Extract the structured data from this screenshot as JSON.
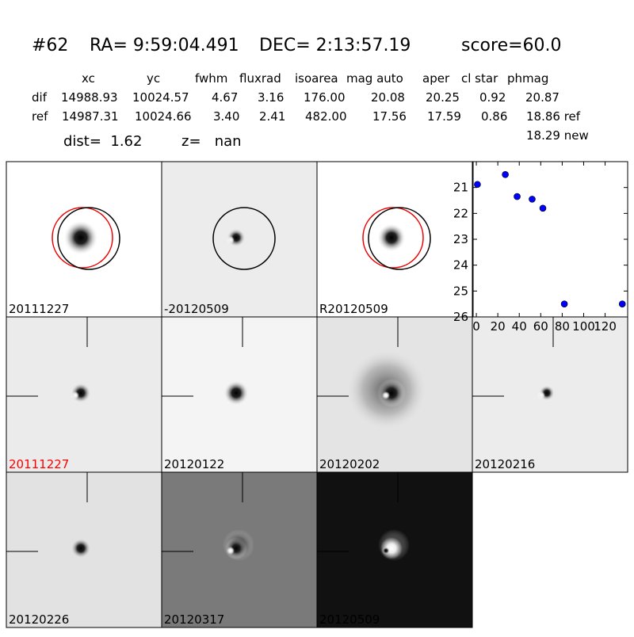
{
  "header": {
    "id": "#62",
    "ra": "RA= 9:59:04.491",
    "dec": "DEC= 2:13:57.19",
    "score": "score=60.0"
  },
  "table": {
    "columns": [
      "xc",
      "yc",
      "fwhm",
      "fluxrad",
      "isoarea",
      "mag auto",
      "aper",
      "cl star",
      "phmag"
    ],
    "rows": [
      [
        "dif",
        "14988.93",
        "10024.57",
        "4.67",
        "3.16",
        "176.00",
        "20.08",
        "20.25",
        "0.92",
        "20.87"
      ],
      [
        "ref",
        "14987.31",
        "10024.66",
        "3.40",
        "2.41",
        "482.00",
        "17.56",
        "17.59",
        "0.86",
        "18.86 ref"
      ]
    ],
    "extra": "18.29 new"
  },
  "info": {
    "dist": "dist=  1.62",
    "z": "z=   nan"
  },
  "panels": [
    {
      "label": "20111227"
    },
    {
      "label": "-20120509"
    },
    {
      "label": "R20120509"
    },
    {
      "label": "20111227",
      "label_color": "#ff0000"
    },
    {
      "label": "20120122"
    },
    {
      "label": "20120202"
    },
    {
      "label": "20120216"
    },
    {
      "label": "20120226"
    },
    {
      "label": "20120317"
    },
    {
      "label": "20120509"
    }
  ],
  "chart_data": {
    "type": "scatter",
    "x": [
      1,
      27,
      38,
      52,
      62,
      82,
      136
    ],
    "y": [
      20.88,
      20.5,
      21.35,
      21.45,
      21.8,
      25.5,
      25.5
    ],
    "color": "#0000ff",
    "xlim": [
      -3,
      141
    ],
    "ylim": [
      20,
      26
    ],
    "y_inverted": true,
    "xticks": [
      0,
      20,
      40,
      60,
      80,
      100,
      120
    ],
    "yticks": [
      21,
      22,
      23,
      24,
      25,
      26
    ]
  }
}
